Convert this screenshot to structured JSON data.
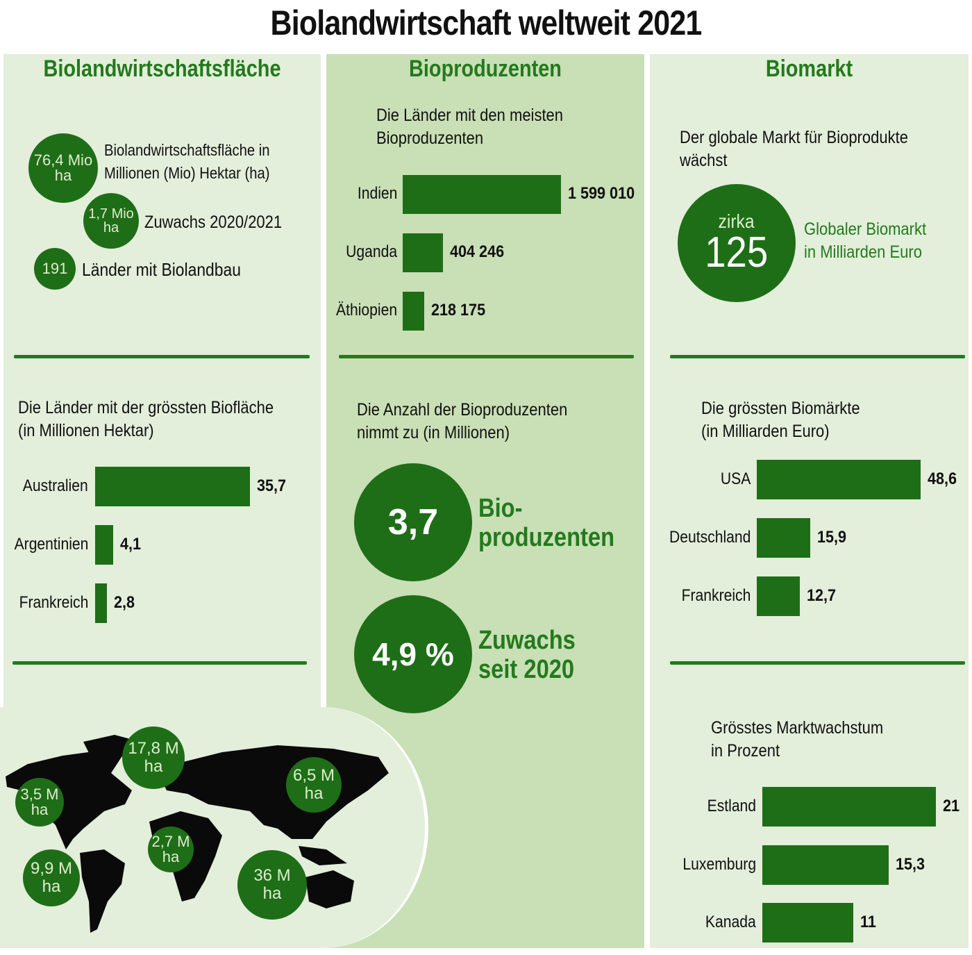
{
  "title": "Biolandwirtschaft weltweit 2021",
  "colors": {
    "dark_green": "#1e6e17",
    "heading_green": "#237a1c",
    "panel_light": "#e3eedb",
    "panel_mid": "#c9dfb6"
  },
  "left": {
    "heading": "Biolandwirtschaftsfläche",
    "stats": [
      {
        "value": "76,4 Mio",
        "unit": "ha",
        "label_1": "Biolandwirtschaftsfläche in",
        "label_2": "Millionen (Mio) Hektar (ha)"
      },
      {
        "value": "1,7 Mio",
        "unit": "ha",
        "label": "Zuwachs 2020/2021"
      },
      {
        "value": "191",
        "label": "Länder mit Biolandbau"
      }
    ],
    "map": {
      "bubbles": [
        {
          "value": "17,8 M",
          "unit": "ha"
        },
        {
          "value": "3,5 M",
          "unit": "ha"
        },
        {
          "value": "6,5 M",
          "unit": "ha"
        },
        {
          "value": "2,7 M",
          "unit": "ha"
        },
        {
          "value": "9,9 M",
          "unit": "ha"
        },
        {
          "value": "36 M",
          "unit": "ha"
        }
      ]
    }
  },
  "middle": {
    "heading": "Bioproduzenten",
    "count_value": "3,7",
    "count_label_1": "Bio-",
    "count_label_2": "produzenten",
    "growth_value": "4,9 %",
    "growth_label_1": "Zuwachs",
    "growth_label_2": "seit 2020",
    "subtitle_2_1": "Die Anzahl der Bioproduzenten",
    "subtitle_2_2": "nimmt zu (in Millionen)"
  },
  "right": {
    "heading": "Biomarkt",
    "subtitle_1": "Der globale Markt für Bioprodukte",
    "subtitle_2": "wächst",
    "market_prefix": "zirka",
    "market_value": "125",
    "market_label_1": "Globaler Biomarkt",
    "market_label_2": "in Milliarden Euro"
  },
  "chart_data": [
    {
      "type": "bar",
      "orientation": "horizontal",
      "title_1": "Die Länder mit den meisten",
      "title_2": "Bioproduzenten",
      "categories": [
        "Indien",
        "Uganda",
        "Äthiopien"
      ],
      "values": [
        1599010,
        404246,
        218175
      ],
      "labels": [
        "1 599 010",
        "404 246",
        "218 175"
      ]
    },
    {
      "type": "bar",
      "orientation": "horizontal",
      "title_1": "Die Länder mit der grössten Biofläche",
      "title_2": "(in Millionen Hektar)",
      "categories": [
        "Australien",
        "Argentinien",
        "Frankreich"
      ],
      "values": [
        35.7,
        4.1,
        2.8
      ],
      "labels": [
        "35,7",
        "4,1",
        "2,8"
      ]
    },
    {
      "type": "bar",
      "orientation": "horizontal",
      "title_1": "Die grössten Biomärkte",
      "title_2": "(in Milliarden Euro)",
      "categories": [
        "USA",
        "Deutschland",
        "Frankreich"
      ],
      "values": [
        48.6,
        15.9,
        12.7
      ],
      "labels": [
        "48,6",
        "15,9",
        "12,7"
      ]
    },
    {
      "type": "bar",
      "orientation": "horizontal",
      "title_1": "Grösstes Marktwachstum",
      "title_2": "in Prozent",
      "categories": [
        "Estland",
        "Luxemburg",
        "Kanada"
      ],
      "values": [
        21,
        15.3,
        11
      ],
      "labels": [
        "21",
        "15,3",
        "11"
      ]
    }
  ]
}
